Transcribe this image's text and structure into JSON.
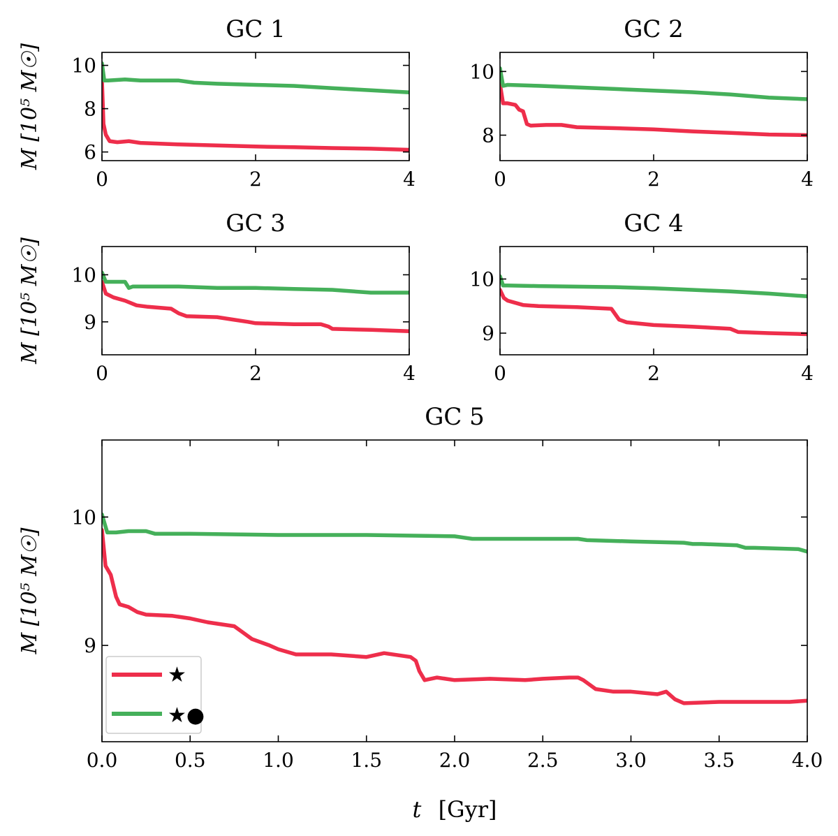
{
  "colors": {
    "stars": "#ee2e4b",
    "stars_bh": "#45b05a"
  },
  "figure": {
    "xlabel_var": "t",
    "xlabel_unit": "[Gyr]"
  },
  "legend": {
    "placement": "lower-left",
    "entries": [
      "★",
      "★●"
    ]
  },
  "chart_data": [
    {
      "type": "line",
      "title": "GC 1",
      "xlabel": "",
      "ylabel": "M  [10⁵ M☉]",
      "xlim": [
        0,
        4
      ],
      "ylim": [
        5.6,
        10.6
      ],
      "xticks": [
        0,
        2,
        4
      ],
      "yticks": [
        6,
        8,
        10
      ],
      "series": [
        {
          "name": "★",
          "x": [
            0,
            0.02,
            0.05,
            0.1,
            0.2,
            0.35,
            0.5,
            1.0,
            1.5,
            2.0,
            2.5,
            3.0,
            3.5,
            4.0
          ],
          "y": [
            9.3,
            7.3,
            6.8,
            6.5,
            6.45,
            6.5,
            6.42,
            6.35,
            6.3,
            6.25,
            6.22,
            6.18,
            6.15,
            6.1
          ]
        },
        {
          "name": "★●",
          "x": [
            0,
            0.03,
            0.08,
            0.3,
            0.5,
            1.0,
            1.2,
            1.5,
            2.0,
            2.5,
            3.0,
            3.5,
            4.0
          ],
          "y": [
            10.1,
            9.3,
            9.3,
            9.35,
            9.3,
            9.3,
            9.2,
            9.15,
            9.1,
            9.05,
            8.95,
            8.85,
            8.75
          ]
        }
      ]
    },
    {
      "type": "line",
      "title": "GC 2",
      "xlabel": "",
      "ylabel": "",
      "xlim": [
        0,
        4
      ],
      "ylim": [
        7.2,
        10.6
      ],
      "xticks": [
        0,
        2,
        4
      ],
      "yticks": [
        8,
        10
      ],
      "series": [
        {
          "name": "★",
          "x": [
            0,
            0.04,
            0.1,
            0.2,
            0.25,
            0.3,
            0.35,
            0.4,
            0.6,
            0.8,
            1.0,
            1.5,
            2.0,
            2.5,
            3.0,
            3.5,
            4.0
          ],
          "y": [
            9.6,
            9.0,
            9.0,
            8.95,
            8.8,
            8.75,
            8.35,
            8.3,
            8.32,
            8.32,
            8.25,
            8.22,
            8.18,
            8.12,
            8.07,
            8.02,
            8.0
          ]
        },
        {
          "name": "★●",
          "x": [
            0,
            0.04,
            0.1,
            0.5,
            1.0,
            1.5,
            2.0,
            2.5,
            3.0,
            3.5,
            4.0
          ],
          "y": [
            10.1,
            9.55,
            9.58,
            9.55,
            9.5,
            9.45,
            9.4,
            9.35,
            9.28,
            9.18,
            9.13
          ]
        }
      ]
    },
    {
      "type": "line",
      "title": "GC 3",
      "xlabel": "",
      "ylabel": "M  [10⁵ M☉]",
      "xlim": [
        0,
        4
      ],
      "ylim": [
        8.3,
        10.6
      ],
      "xticks": [
        0,
        2,
        4
      ],
      "yticks": [
        9,
        10
      ],
      "series": [
        {
          "name": "★",
          "x": [
            0,
            0.05,
            0.15,
            0.3,
            0.45,
            0.6,
            0.9,
            1.0,
            1.1,
            1.5,
            1.7,
            1.9,
            2.0,
            2.5,
            2.85,
            2.95,
            3.0,
            3.5,
            4.0
          ],
          "y": [
            9.85,
            9.6,
            9.52,
            9.45,
            9.35,
            9.32,
            9.28,
            9.18,
            9.12,
            9.1,
            9.05,
            9.0,
            8.97,
            8.95,
            8.95,
            8.9,
            8.85,
            8.83,
            8.8
          ]
        },
        {
          "name": "★●",
          "x": [
            0,
            0.05,
            0.3,
            0.35,
            0.4,
            1.0,
            1.5,
            2.0,
            2.5,
            3.0,
            3.5,
            4.0
          ],
          "y": [
            10.05,
            9.85,
            9.85,
            9.72,
            9.75,
            9.75,
            9.72,
            9.72,
            9.7,
            9.68,
            9.62,
            9.62
          ]
        }
      ]
    },
    {
      "type": "line",
      "title": "GC 4",
      "xlabel": "",
      "ylabel": "",
      "xlim": [
        0,
        4
      ],
      "ylim": [
        8.6,
        10.6
      ],
      "xticks": [
        0,
        2,
        4
      ],
      "yticks": [
        9,
        10
      ],
      "series": [
        {
          "name": "★",
          "x": [
            0,
            0.05,
            0.1,
            0.3,
            0.5,
            1.0,
            1.45,
            1.55,
            1.65,
            2.0,
            2.5,
            3.0,
            3.1,
            3.5,
            4.0
          ],
          "y": [
            9.8,
            9.65,
            9.6,
            9.52,
            9.5,
            9.48,
            9.45,
            9.25,
            9.2,
            9.15,
            9.12,
            9.08,
            9.02,
            9.0,
            8.98
          ]
        },
        {
          "name": "★●",
          "x": [
            0,
            0.04,
            0.1,
            0.5,
            1.0,
            1.5,
            2.0,
            2.5,
            3.0,
            3.5,
            4.0
          ],
          "y": [
            10.05,
            9.88,
            9.88,
            9.87,
            9.86,
            9.85,
            9.83,
            9.8,
            9.77,
            9.73,
            9.68
          ]
        }
      ]
    },
    {
      "type": "line",
      "title": "GC 5",
      "xlabel": "t  [Gyr]",
      "ylabel": "M  [10⁵ M☉]",
      "xlim": [
        0,
        4
      ],
      "ylim": [
        8.25,
        10.6
      ],
      "xticks": [
        0.0,
        0.5,
        1.0,
        1.5,
        2.0,
        2.5,
        3.0,
        3.5,
        4.0
      ],
      "yticks": [
        9,
        10
      ],
      "series": [
        {
          "name": "★",
          "x": [
            0,
            0.02,
            0.05,
            0.08,
            0.1,
            0.15,
            0.2,
            0.25,
            0.4,
            0.5,
            0.6,
            0.65,
            0.75,
            0.8,
            0.85,
            0.95,
            1.0,
            1.1,
            1.3,
            1.5,
            1.6,
            1.75,
            1.78,
            1.8,
            1.83,
            1.9,
            2.0,
            2.2,
            2.4,
            2.5,
            2.65,
            2.7,
            2.73,
            2.76,
            2.8,
            2.9,
            3.0,
            3.15,
            3.2,
            3.25,
            3.3,
            3.5,
            3.7,
            3.9,
            4.0
          ],
          "y": [
            9.9,
            9.62,
            9.55,
            9.38,
            9.32,
            9.3,
            9.26,
            9.24,
            9.23,
            9.21,
            9.18,
            9.17,
            9.15,
            9.1,
            9.05,
            9.0,
            8.97,
            8.93,
            8.93,
            8.91,
            8.94,
            8.91,
            8.88,
            8.8,
            8.73,
            8.75,
            8.73,
            8.74,
            8.73,
            8.74,
            8.75,
            8.75,
            8.73,
            8.7,
            8.66,
            8.64,
            8.64,
            8.62,
            8.64,
            8.58,
            8.55,
            8.56,
            8.56,
            8.56,
            8.57
          ]
        },
        {
          "name": "★●",
          "x": [
            0,
            0.03,
            0.08,
            0.15,
            0.25,
            0.3,
            0.5,
            1.0,
            1.5,
            2.0,
            2.05,
            2.1,
            2.5,
            2.7,
            2.75,
            3.0,
            3.3,
            3.35,
            3.4,
            3.6,
            3.65,
            3.7,
            3.95,
            4.0
          ],
          "y": [
            10.02,
            9.88,
            9.88,
            9.89,
            9.89,
            9.87,
            9.87,
            9.86,
            9.86,
            9.85,
            9.84,
            9.83,
            9.83,
            9.83,
            9.82,
            9.81,
            9.8,
            9.79,
            9.79,
            9.78,
            9.76,
            9.76,
            9.75,
            9.73
          ]
        }
      ]
    }
  ]
}
